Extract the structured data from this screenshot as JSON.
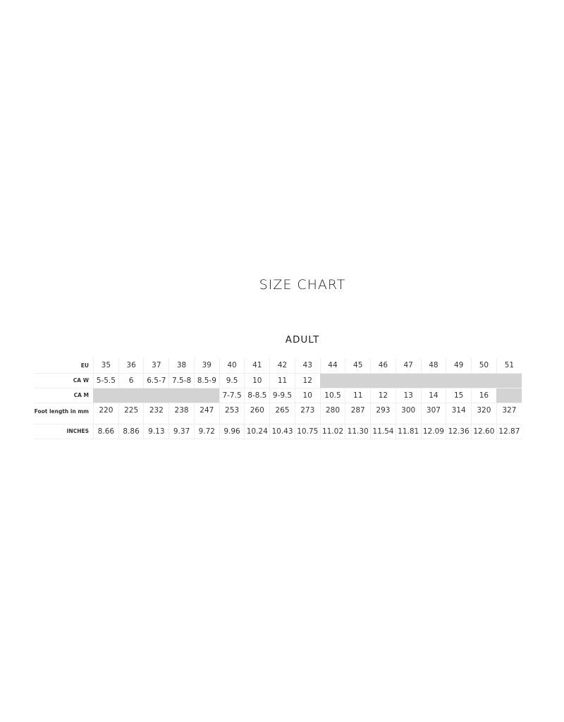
{
  "title": "SIZE CHART",
  "subtitle": "ADULT",
  "rows": [
    {
      "label": "EU",
      "values": [
        "35",
        "36",
        "37",
        "38",
        "39",
        "40",
        "41",
        "42",
        "43",
        "44",
        "45",
        "46",
        "47",
        "48",
        "49",
        "50",
        "51"
      ]
    },
    {
      "label": "CA W",
      "values": [
        "5-5.5",
        "6",
        "6.5-7",
        "7.5-8",
        "8.5-9",
        "9.5",
        "10",
        "11",
        "12",
        null,
        null,
        null,
        null,
        null,
        null,
        null,
        null
      ]
    },
    {
      "label": "CA M",
      "values": [
        null,
        null,
        null,
        null,
        null,
        "7-7.5",
        "8-8.5",
        "9-9.5",
        "10",
        "10.5",
        "11",
        "12",
        "13",
        "14",
        "15",
        "16",
        null
      ]
    },
    {
      "label": "Foot length in mm",
      "values": [
        "220",
        "225",
        "232",
        "238",
        "247",
        "253",
        "260",
        "265",
        "273",
        "280",
        "287",
        "293",
        "300",
        "307",
        "314",
        "320",
        "327"
      ]
    },
    {
      "label": "INCHES",
      "values": [
        "8.66",
        "8.86",
        "9.13",
        "9.37",
        "9.72",
        "9.96",
        "10.24",
        "10.43",
        "10.75",
        "11.02",
        "11.30",
        "11.54",
        "11.81",
        "12.09",
        "12.36",
        "12.60",
        "12.87"
      ]
    }
  ],
  "unavailable_color": "#d3d3d3"
}
